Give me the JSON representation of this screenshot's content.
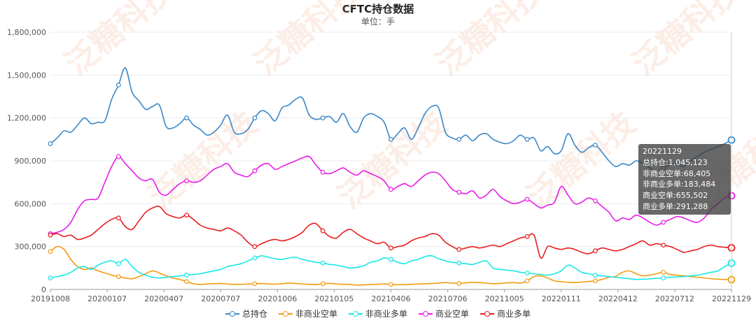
{
  "chart_data": {
    "type": "line",
    "title": "CFTC持仓数据",
    "subtitle": "单位：手",
    "ylim": [
      0,
      1800000
    ],
    "yticks": [
      "0",
      "300,000",
      "600,000",
      "900,000",
      "1,200,000",
      "1,500,000",
      "1,800,000"
    ],
    "x_tick_labels": [
      "20191008",
      "20200107",
      "20200407",
      "20200707",
      "20201006",
      "20210105",
      "20210406",
      "20210706",
      "20211005",
      "20220111",
      "20220412",
      "20220712",
      "20221129"
    ],
    "legend_position": "bottom",
    "grid": "horizontal",
    "x": [
      0,
      10,
      20,
      30,
      40,
      50,
      60,
      70,
      80,
      90,
      100,
      110,
      120,
      130,
      140,
      150,
      160,
      170,
      180,
      190,
      200,
      210,
      220,
      230,
      240,
      250,
      260,
      270,
      280,
      290,
      300,
      310,
      320,
      330,
      340,
      350,
      360,
      370,
      380,
      390,
      400,
      410,
      420,
      430,
      440,
      450,
      460,
      470,
      480,
      490,
      500,
      510,
      520,
      530,
      540,
      550,
      560,
      570,
      580,
      590,
      600,
      610,
      620,
      630,
      640,
      650,
      660,
      670,
      680,
      690,
      700,
      710,
      720,
      730,
      740,
      750,
      760,
      770,
      780,
      790,
      800,
      810,
      820,
      830,
      840,
      850,
      860,
      870,
      880,
      890,
      900,
      910,
      920,
      930,
      940,
      950,
      960,
      970,
      980,
      990,
      1000
    ],
    "series": [
      {
        "name": "总持仓",
        "color": "#3a87c7",
        "values": [
          1020000,
          1060000,
          1110000,
          1100000,
          1150000,
          1200000,
          1160000,
          1170000,
          1180000,
          1330000,
          1430000,
          1550000,
          1380000,
          1320000,
          1260000,
          1280000,
          1290000,
          1140000,
          1130000,
          1160000,
          1200000,
          1150000,
          1120000,
          1080000,
          1100000,
          1150000,
          1220000,
          1100000,
          1090000,
          1120000,
          1200000,
          1250000,
          1230000,
          1180000,
          1270000,
          1290000,
          1330000,
          1340000,
          1220000,
          1190000,
          1200000,
          1210000,
          1170000,
          1230000,
          1140000,
          1100000,
          1200000,
          1230000,
          1210000,
          1170000,
          1050000,
          1090000,
          1130000,
          1050000,
          1130000,
          1230000,
          1280000,
          1270000,
          1100000,
          1060000,
          1050000,
          1080000,
          1040000,
          1080000,
          1090000,
          1050000,
          1030000,
          1020000,
          1040000,
          1080000,
          1050000,
          1060000,
          970000,
          1000000,
          950000,
          970000,
          1090000,
          1010000,
          960000,
          990000,
          1010000,
          960000,
          900000,
          860000,
          880000,
          870000,
          900000,
          880000,
          850000,
          830000,
          850000,
          870000,
          880000,
          860000,
          900000,
          930000,
          960000,
          980000,
          1000000,
          1020000,
          1045123
        ]
      },
      {
        "name": "非商业空单",
        "color": "#f39c12",
        "values": [
          265000,
          300000,
          280000,
          210000,
          160000,
          140000,
          150000,
          130000,
          115000,
          100000,
          90000,
          80000,
          75000,
          90000,
          110000,
          130000,
          115000,
          95000,
          80000,
          70000,
          55000,
          40000,
          35000,
          38000,
          40000,
          42000,
          38000,
          35000,
          36000,
          38000,
          40000,
          42000,
          38000,
          37000,
          40000,
          45000,
          42000,
          38000,
          36000,
          34000,
          40000,
          42000,
          38000,
          36000,
          35000,
          30000,
          32000,
          34000,
          36000,
          38000,
          35000,
          33000,
          34000,
          36000,
          38000,
          40000,
          42000,
          45000,
          48000,
          44000,
          42000,
          46000,
          50000,
          48000,
          44000,
          40000,
          42000,
          46000,
          48000,
          45000,
          60000,
          90000,
          95000,
          80000,
          60000,
          55000,
          50000,
          48000,
          52000,
          56000,
          60000,
          70000,
          85000,
          92000,
          120000,
          130000,
          110000,
          95000,
          100000,
          110000,
          120000,
          105000,
          100000,
          95000,
          90000,
          85000,
          80000,
          75000,
          72000,
          70000,
          68405
        ]
      },
      {
        "name": "非商业多单",
        "color": "#17e8e8",
        "values": [
          80000,
          90000,
          100000,
          120000,
          150000,
          160000,
          140000,
          170000,
          190000,
          200000,
          180000,
          210000,
          160000,
          120000,
          100000,
          85000,
          80000,
          85000,
          90000,
          95000,
          100000,
          105000,
          110000,
          120000,
          130000,
          140000,
          160000,
          170000,
          180000,
          200000,
          220000,
          235000,
          225000,
          215000,
          210000,
          220000,
          225000,
          210000,
          200000,
          190000,
          185000,
          175000,
          170000,
          160000,
          150000,
          155000,
          165000,
          190000,
          200000,
          220000,
          210000,
          190000,
          180000,
          200000,
          210000,
          230000,
          235000,
          215000,
          200000,
          190000,
          185000,
          180000,
          175000,
          190000,
          200000,
          150000,
          140000,
          135000,
          130000,
          120000,
          115000,
          110000,
          105000,
          100000,
          110000,
          130000,
          170000,
          150000,
          120000,
          110000,
          100000,
          95000,
          90000,
          85000,
          80000,
          75000,
          70000,
          72000,
          74000,
          78000,
          80000,
          85000,
          88000,
          90000,
          95000,
          100000,
          110000,
          120000,
          130000,
          160000,
          183484
        ]
      },
      {
        "name": "商业空单",
        "color": "#e81ce8",
        "values": [
          390000,
          400000,
          420000,
          470000,
          560000,
          620000,
          630000,
          640000,
          750000,
          860000,
          930000,
          880000,
          830000,
          780000,
          760000,
          770000,
          680000,
          660000,
          700000,
          740000,
          760000,
          750000,
          760000,
          800000,
          840000,
          860000,
          880000,
          820000,
          800000,
          790000,
          830000,
          870000,
          880000,
          840000,
          860000,
          880000,
          900000,
          920000,
          930000,
          870000,
          820000,
          810000,
          830000,
          850000,
          820000,
          800000,
          830000,
          810000,
          790000,
          760000,
          700000,
          720000,
          740000,
          720000,
          760000,
          800000,
          820000,
          810000,
          760000,
          700000,
          680000,
          670000,
          690000,
          640000,
          660000,
          700000,
          650000,
          620000,
          600000,
          610000,
          630000,
          600000,
          570000,
          590000,
          610000,
          720000,
          660000,
          600000,
          610000,
          640000,
          620000,
          580000,
          540000,
          480000,
          500000,
          490000,
          520000,
          500000,
          470000,
          450000,
          470000,
          490000,
          510000,
          500000,
          480000,
          470000,
          500000,
          560000,
          600000,
          640000,
          655502
        ]
      },
      {
        "name": "商业多单",
        "color": "#e81c1c",
        "values": [
          380000,
          390000,
          370000,
          380000,
          350000,
          360000,
          380000,
          420000,
          460000,
          490000,
          500000,
          440000,
          420000,
          480000,
          540000,
          570000,
          580000,
          530000,
          510000,
          500000,
          520000,
          490000,
          450000,
          430000,
          420000,
          410000,
          430000,
          410000,
          380000,
          330000,
          300000,
          320000,
          340000,
          350000,
          340000,
          350000,
          370000,
          400000,
          450000,
          460000,
          410000,
          370000,
          360000,
          400000,
          420000,
          390000,
          360000,
          340000,
          320000,
          330000,
          290000,
          300000,
          310000,
          340000,
          360000,
          370000,
          390000,
          380000,
          330000,
          300000,
          280000,
          290000,
          300000,
          290000,
          300000,
          310000,
          300000,
          320000,
          340000,
          360000,
          370000,
          380000,
          220000,
          300000,
          290000,
          280000,
          290000,
          280000,
          260000,
          250000,
          270000,
          290000,
          280000,
          270000,
          280000,
          300000,
          320000,
          340000,
          310000,
          320000,
          310000,
          300000,
          280000,
          260000,
          270000,
          280000,
          300000,
          310000,
          300000,
          295000,
          291288
        ]
      }
    ]
  },
  "tooltip": {
    "date": "20221129",
    "lines": [
      "总持仓:1,045,123",
      "非商业空单:68,405",
      "非商业多单:183,484",
      "商业空单:655,502",
      "商业多单:291,288"
    ]
  },
  "watermark": "泛糖科技"
}
